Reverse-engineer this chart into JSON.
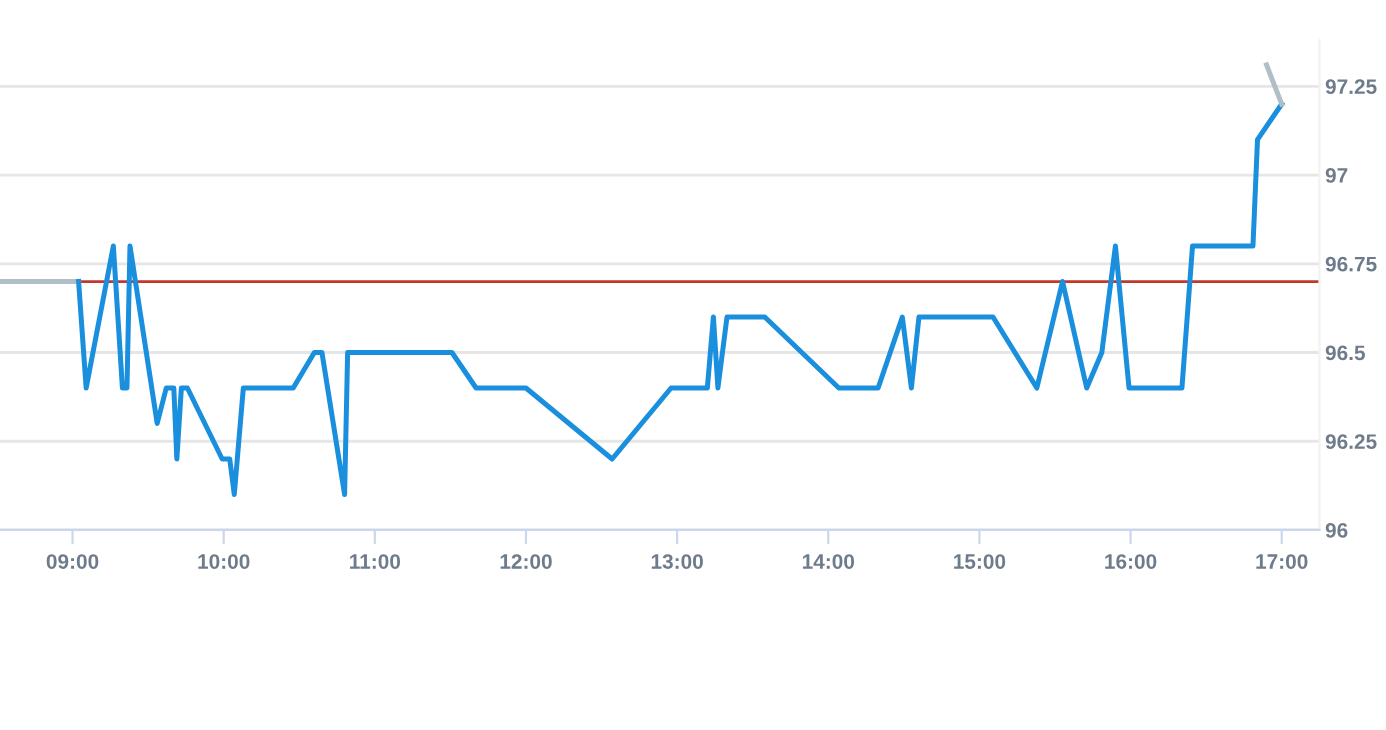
{
  "chart_data": {
    "type": "line",
    "series": [
      {
        "color": "#b0bec5",
        "x": [
          8.52,
          9.04
        ],
        "values": [
          96.7,
          96.7
        ]
      },
      {
        "color": "#1a8fdd",
        "x": [
          9.04,
          9.09,
          9.27,
          9.33,
          9.36,
          9.38,
          9.56,
          9.62,
          9.67,
          9.69,
          9.72,
          9.76,
          9.99,
          10.04,
          10.07,
          10.13,
          10.46,
          10.6,
          10.65,
          10.8,
          10.82,
          11.51,
          11.67,
          12.0,
          12.57,
          12.96,
          13.2,
          13.24,
          13.27,
          13.33,
          13.58,
          14.07,
          14.33,
          14.49,
          14.55,
          14.6,
          15.09,
          15.38,
          15.55,
          15.71,
          15.81,
          15.9,
          15.99,
          16.34,
          16.41,
          16.81,
          16.84,
          17.0
        ],
        "values": [
          96.7,
          96.4,
          96.8,
          96.4,
          96.4,
          96.8,
          96.3,
          96.4,
          96.4,
          96.2,
          96.4,
          96.4,
          96.2,
          96.2,
          96.1,
          96.4,
          96.4,
          96.5,
          96.5,
          96.1,
          96.5,
          96.5,
          96.4,
          96.4,
          96.2,
          96.4,
          96.4,
          96.6,
          96.4,
          96.6,
          96.6,
          96.4,
          96.4,
          96.6,
          96.4,
          96.6,
          96.6,
          96.4,
          96.7,
          96.4,
          96.5,
          96.8,
          96.4,
          96.4,
          96.8,
          96.8,
          97.1,
          97.2
        ]
      },
      {
        "color": "#b0bec5",
        "x": [
          16.9,
          17.0
        ],
        "values": [
          97.31,
          97.2
        ]
      }
    ],
    "xlim": [
      8.52,
      17.25
    ],
    "xticks": [
      {
        "value": 9,
        "label": "09:00"
      },
      {
        "value": 10,
        "label": "10:00"
      },
      {
        "value": 11,
        "label": "11:00"
      },
      {
        "value": 12,
        "label": "12:00"
      },
      {
        "value": 13,
        "label": "13:00"
      },
      {
        "value": 14,
        "label": "14:00"
      },
      {
        "value": 15,
        "label": "15:00"
      },
      {
        "value": 16,
        "label": "16:00"
      },
      {
        "value": 17,
        "label": "17:00"
      }
    ],
    "ylim": [
      96,
      97.38
    ],
    "yticks": [
      96,
      96.25,
      96.5,
      96.75,
      97,
      97.25
    ],
    "ref_lines": [
      {
        "axis": "y",
        "value": 96.7,
        "color": "#c0392b"
      }
    ],
    "grid": "y"
  }
}
